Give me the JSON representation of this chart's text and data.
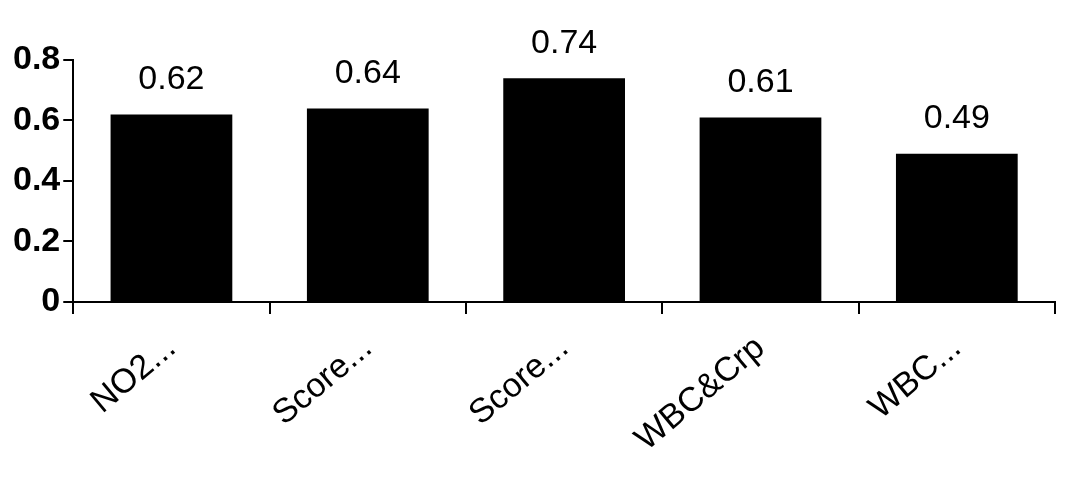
{
  "chart_data": {
    "type": "bar",
    "categories": [
      "NO2...",
      "Score...",
      "Score...",
      "WBC&Crp",
      "WBC..."
    ],
    "values": [
      0.62,
      0.64,
      0.74,
      0.61,
      0.49
    ],
    "color": "#000000",
    "ylim": [
      0,
      0.8
    ],
    "yticks": [
      0,
      0.2,
      0.4,
      0.6,
      0.8
    ],
    "grid": false,
    "legend": false,
    "data_labels": true
  }
}
